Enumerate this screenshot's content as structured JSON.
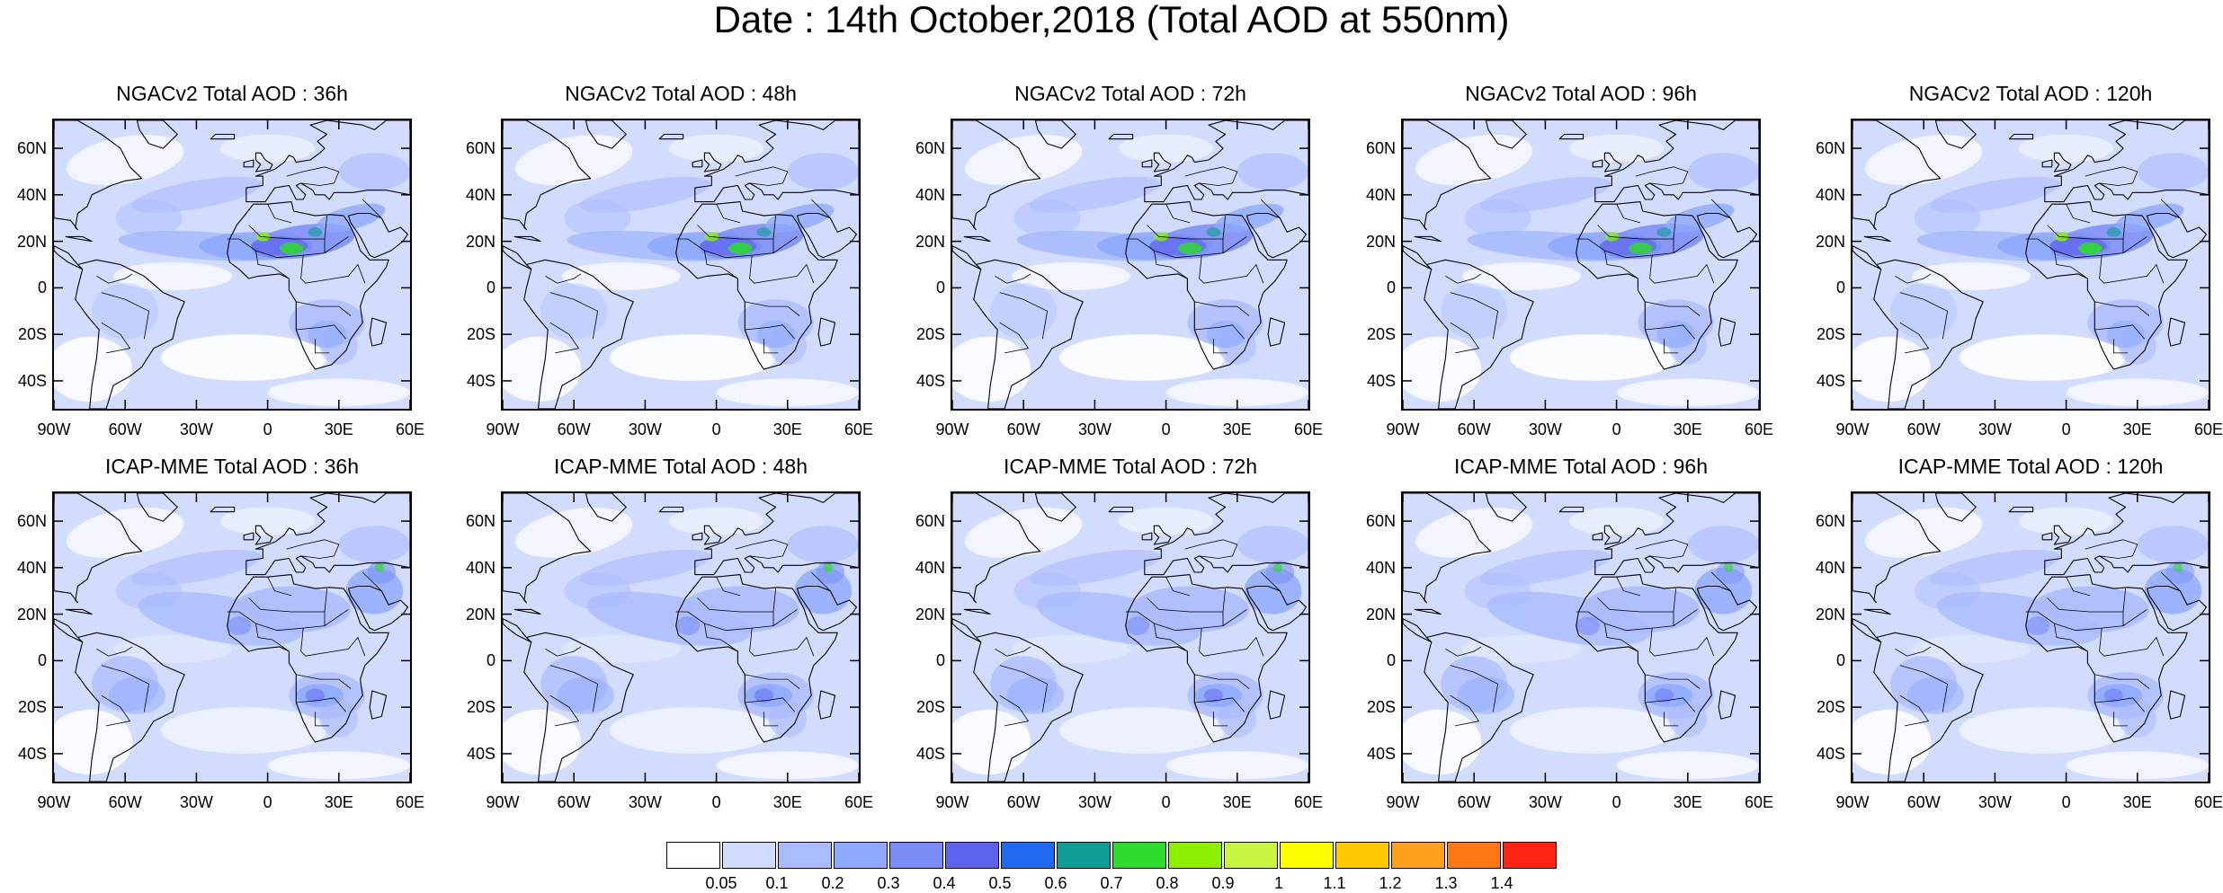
{
  "title": "Date : 14th October,2018 (Total AOD at 550nm)",
  "lat_labels": [
    "60N",
    "40N",
    "20N",
    "0",
    "20S",
    "40S"
  ],
  "lon_labels": [
    "90W",
    "60W",
    "30W",
    "0",
    "30E",
    "60E"
  ],
  "panels": [
    {
      "title": "NGACv2 Total AOD : 36h",
      "dust": 0.95
    },
    {
      "title": "NGACv2 Total AOD : 48h",
      "dust": 0.95
    },
    {
      "title": "NGACv2 Total AOD : 72h",
      "dust": 0.9
    },
    {
      "title": "NGACv2 Total AOD : 96h",
      "dust": 0.9
    },
    {
      "title": "NGACv2 Total AOD : 120h",
      "dust": 1.0
    },
    {
      "title": "ICAP-MME Total AOD : 36h",
      "dust": 0.8
    },
    {
      "title": "ICAP-MME Total AOD : 48h",
      "dust": 0.8
    },
    {
      "title": "ICAP-MME Total AOD : 72h",
      "dust": 0.8
    },
    {
      "title": "ICAP-MME Total AOD : 96h",
      "dust": 0.7
    },
    {
      "title": "ICAP-MME Total AOD : 120h",
      "dust": 0.7
    }
  ],
  "colorbar": {
    "labels": [
      "0.05",
      "0.1",
      "0.2",
      "0.3",
      "0.4",
      "0.5",
      "0.6",
      "0.7",
      "0.8",
      "0.9",
      "1",
      "1.1",
      "1.2",
      "1.3",
      "1.4"
    ],
    "colors": [
      "#ffffff",
      "#d2dcff",
      "#aabbff",
      "#8eaaff",
      "#7a8cf5",
      "#5e63ee",
      "#1f6af0",
      "#109c94",
      "#2ddc2d",
      "#8cf000",
      "#c8f541",
      "#ffff00",
      "#ffc800",
      "#ffa01e",
      "#ff7814",
      "#ff2414"
    ]
  }
}
